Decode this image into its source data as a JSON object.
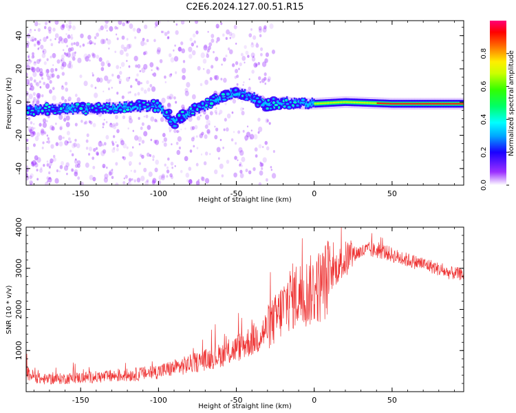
{
  "title": "C2E6.2024.127.00.51.R15",
  "chart_data": [
    {
      "type": "heatmap",
      "xlabel": "Height of straight line (km)",
      "ylabel": "Frequency (Hz)",
      "xlim": [
        -185,
        96
      ],
      "ylim": [
        -50,
        49
      ],
      "xticks": [
        -150,
        -100,
        -50,
        0,
        50
      ],
      "yticks": [
        -40,
        -20,
        0,
        20,
        40
      ],
      "colorbar": {
        "label": "Normalized spectral amplitude",
        "range": [
          0,
          1
        ],
        "ticks": [
          "0.0",
          "0.2",
          "0.4",
          "0.6",
          "0.8"
        ]
      },
      "ridge_frequency": {
        "x": [
          -185,
          -160,
          -140,
          -120,
          -100,
          -90,
          -80,
          -70,
          -60,
          -50,
          -40,
          -30,
          -20,
          -10,
          0,
          20,
          50,
          96
        ],
        "y": [
          -5,
          -4,
          -4,
          -3,
          -2,
          -12,
          -6,
          -2,
          3,
          6,
          3,
          -2,
          0,
          -1,
          -1,
          0,
          -1,
          -1
        ]
      },
      "grid": false
    },
    {
      "type": "line",
      "xlabel": "Height of straight line (km)",
      "ylabel": "SNR (10 * v/v)",
      "xlim": [
        -185,
        96
      ],
      "ylim": [
        0,
        4000
      ],
      "xticks": [
        -150,
        -100,
        -50,
        0,
        50
      ],
      "yticks": [
        1000,
        2000,
        3000,
        4000
      ],
      "color": "#ee3333",
      "series": [
        {
          "x": [
            -185,
            -175,
            -165,
            -155,
            -145,
            -135,
            -125,
            -115,
            -105,
            -95,
            -85,
            -75,
            -65,
            -55,
            -45,
            -35,
            -25,
            -15,
            -5,
            5,
            15,
            25,
            35,
            45,
            55,
            65,
            75,
            85,
            96
          ],
          "y": [
            450,
            300,
            310,
            330,
            350,
            360,
            390,
            420,
            460,
            530,
            620,
            720,
            830,
            950,
            1150,
            1350,
            1750,
            2300,
            2400,
            2600,
            3050,
            3350,
            3450,
            3400,
            3250,
            3150,
            3050,
            2900,
            2850
          ]
        }
      ],
      "grid": false
    }
  ]
}
